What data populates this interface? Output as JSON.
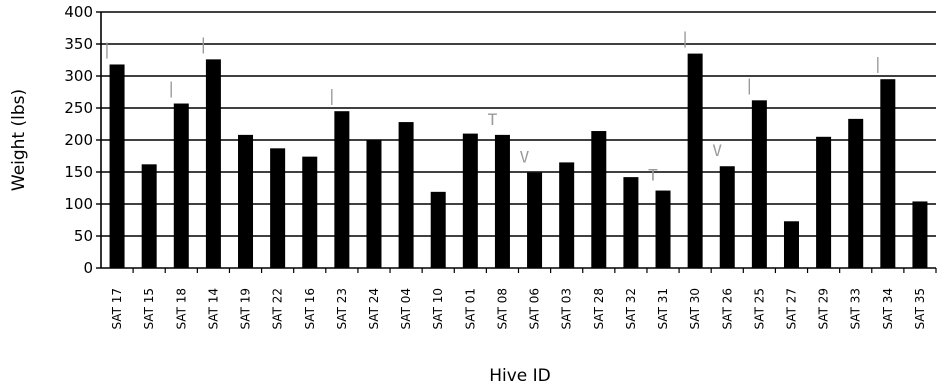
{
  "chart_data": {
    "type": "bar",
    "title": "",
    "xlabel": "Hive ID",
    "ylabel": "Weight (lbs)",
    "ylim": [
      0,
      400
    ],
    "yticks": [
      0,
      50,
      100,
      150,
      200,
      250,
      300,
      350,
      400
    ],
    "grid": true,
    "bar_color": "#000000",
    "annotation_color": "#999999",
    "categories": [
      "SAT 17",
      "SAT 15",
      "SAT 18",
      "SAT 14",
      "SAT 19",
      "SAT 22",
      "SAT 16",
      "SAT 23",
      "SAT 24",
      "SAT 04",
      "SAT 10",
      "SAT 01",
      "SAT 08",
      "SAT 06",
      "SAT 03",
      "SAT 28",
      "SAT 32",
      "SAT 31",
      "SAT 30",
      "SAT 26",
      "SAT 25",
      "SAT 27",
      "SAT 29",
      "SAT 33",
      "SAT 34",
      "SAT 35"
    ],
    "values": [
      318,
      162,
      257,
      326,
      208,
      187,
      174,
      245,
      200,
      228,
      119,
      210,
      208,
      149,
      165,
      214,
      142,
      121,
      335,
      159,
      262,
      73,
      205,
      233,
      295,
      104
    ],
    "annotations": [
      {
        "category": "SAT 17",
        "text": "|"
      },
      {
        "category": "SAT 18",
        "text": "|"
      },
      {
        "category": "SAT 14",
        "text": "|"
      },
      {
        "category": "SAT 23",
        "text": "|"
      },
      {
        "category": "SAT 08",
        "text": "T"
      },
      {
        "category": "SAT 06",
        "text": "V"
      },
      {
        "category": "SAT 31",
        "text": "T"
      },
      {
        "category": "SAT 30",
        "text": "|"
      },
      {
        "category": "SAT 26",
        "text": "V"
      },
      {
        "category": "SAT 25",
        "text": "|"
      },
      {
        "category": "SAT 34",
        "text": "|"
      }
    ]
  }
}
